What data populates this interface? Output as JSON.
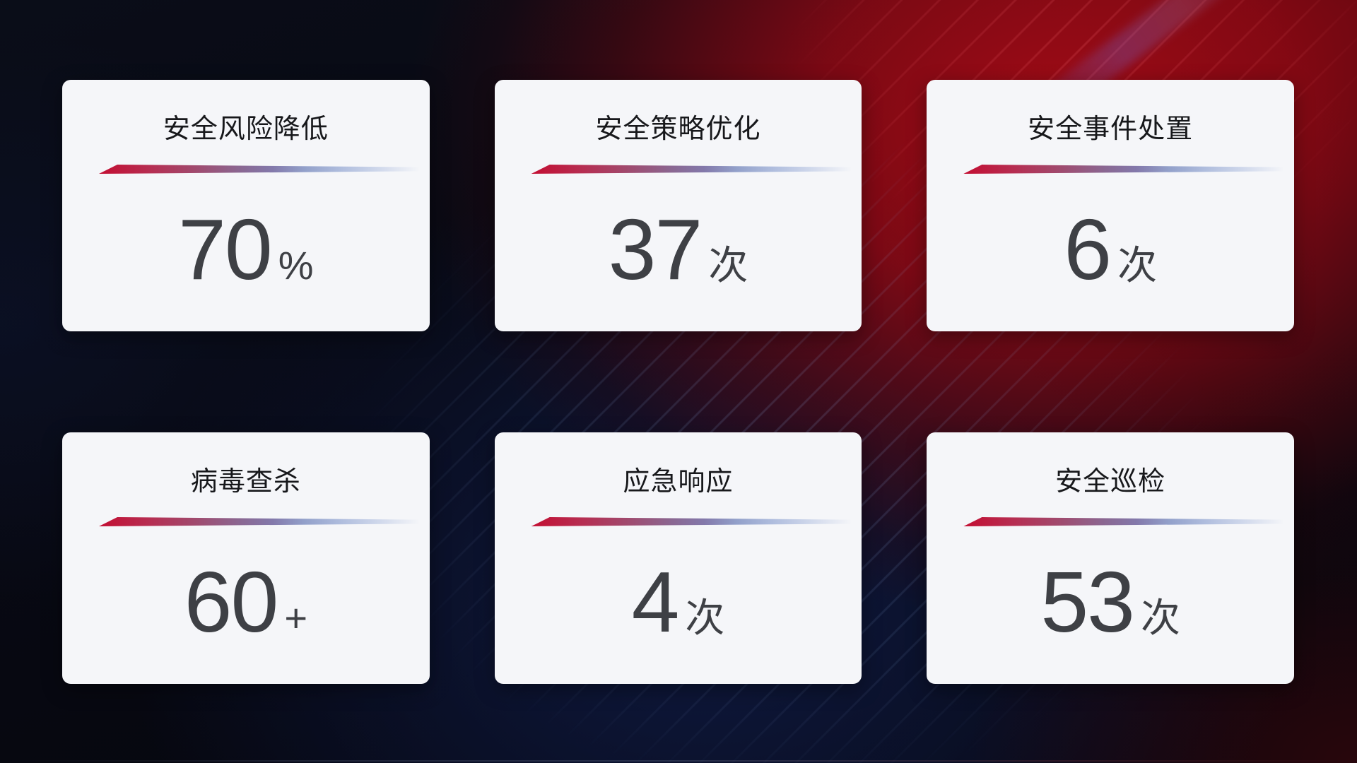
{
  "stats": {
    "cards": [
      {
        "label": "安全风险降低",
        "value": "70",
        "unit": "%"
      },
      {
        "label": "安全策略优化",
        "value": "37",
        "unit": "次"
      },
      {
        "label": "安全事件处置",
        "value": "6",
        "unit": "次"
      },
      {
        "label": "病毒查杀",
        "value": "60",
        "unit": "+"
      },
      {
        "label": "应急响应",
        "value": "4",
        "unit": "次"
      },
      {
        "label": "安全巡检",
        "value": "53",
        "unit": "次"
      }
    ]
  },
  "colors": {
    "accent_red": "#c30e32",
    "accent_blue_light": "#aebcdd",
    "card_background": "#f5f6f9",
    "value_text": "#3e4045",
    "label_text": "#17181b",
    "background_red_glow": "#a00b16",
    "background_navy": "#101c48"
  }
}
